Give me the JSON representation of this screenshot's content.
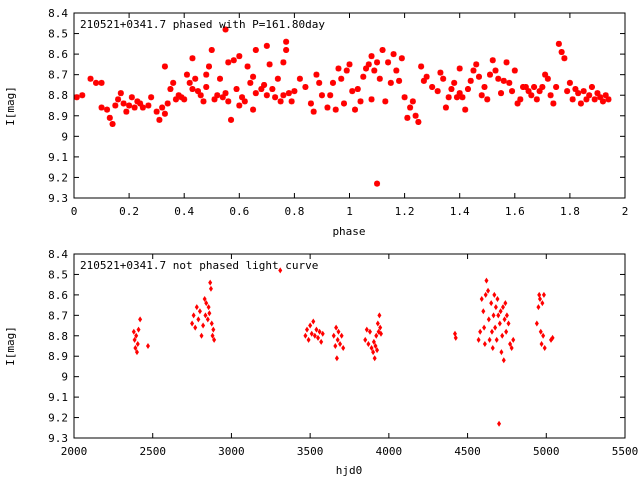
{
  "chart_data": [
    {
      "type": "scatter",
      "title": "210521+0341.7 phased with P=161.80day",
      "xlabel": "phase",
      "ylabel": "I[mag]",
      "xlim": [
        0,
        2
      ],
      "ylim": [
        9.3,
        8.4
      ],
      "y_inverted": true,
      "grid": false,
      "xticks": [
        "0",
        "0.2",
        "0.4",
        "0.6",
        "0.8",
        "1",
        "1.2",
        "1.4",
        "1.6",
        "1.8",
        "2"
      ],
      "yticks": [
        "8.4",
        "8.5",
        "8.6",
        "8.7",
        "8.8",
        "8.9",
        "9",
        "9.1",
        "9.2",
        "9.3"
      ],
      "marker": "star",
      "color": "#ff0000",
      "points": [
        [
          0.01,
          8.81
        ],
        [
          0.03,
          8.8
        ],
        [
          0.06,
          8.72
        ],
        [
          0.08,
          8.74
        ],
        [
          0.1,
          8.74
        ],
        [
          0.1,
          8.86
        ],
        [
          0.12,
          8.87
        ],
        [
          0.13,
          8.91
        ],
        [
          0.14,
          8.94
        ],
        [
          0.15,
          8.85
        ],
        [
          0.16,
          8.82
        ],
        [
          0.17,
          8.79
        ],
        [
          0.18,
          8.84
        ],
        [
          0.19,
          8.88
        ],
        [
          0.2,
          8.85
        ],
        [
          0.21,
          8.81
        ],
        [
          0.22,
          8.86
        ],
        [
          0.23,
          8.83
        ],
        [
          0.24,
          8.84
        ],
        [
          0.25,
          8.86
        ],
        [
          0.27,
          8.85
        ],
        [
          0.28,
          8.81
        ],
        [
          0.3,
          8.88
        ],
        [
          0.31,
          8.92
        ],
        [
          0.32,
          8.86
        ],
        [
          0.33,
          8.89
        ],
        [
          0.33,
          8.66
        ],
        [
          0.34,
          8.84
        ],
        [
          0.35,
          8.77
        ],
        [
          0.36,
          8.74
        ],
        [
          0.37,
          8.82
        ],
        [
          0.38,
          8.8
        ],
        [
          0.39,
          8.81
        ],
        [
          0.4,
          8.82
        ],
        [
          0.41,
          8.7
        ],
        [
          0.42,
          8.74
        ],
        [
          0.43,
          8.62
        ],
        [
          0.43,
          8.77
        ],
        [
          0.44,
          8.72
        ],
        [
          0.45,
          8.78
        ],
        [
          0.46,
          8.8
        ],
        [
          0.47,
          8.83
        ],
        [
          0.48,
          8.7
        ],
        [
          0.48,
          8.76
        ],
        [
          0.49,
          8.66
        ],
        [
          0.5,
          8.58
        ],
        [
          0.51,
          8.82
        ],
        [
          0.52,
          8.8
        ],
        [
          0.53,
          8.72
        ],
        [
          0.54,
          8.81
        ],
        [
          0.55,
          8.79
        ],
        [
          0.55,
          8.48
        ],
        [
          0.56,
          8.64
        ],
        [
          0.56,
          8.83
        ],
        [
          0.57,
          8.92
        ],
        [
          0.58,
          8.63
        ],
        [
          0.59,
          8.77
        ],
        [
          0.6,
          8.61
        ],
        [
          0.6,
          8.85
        ],
        [
          0.61,
          8.81
        ],
        [
          0.62,
          8.83
        ],
        [
          0.63,
          8.66
        ],
        [
          0.64,
          8.74
        ],
        [
          0.65,
          8.87
        ],
        [
          0.65,
          8.71
        ],
        [
          0.66,
          8.79
        ],
        [
          0.66,
          8.58
        ],
        [
          0.68,
          8.77
        ],
        [
          0.69,
          8.75
        ],
        [
          0.7,
          8.56
        ],
        [
          0.7,
          8.8
        ],
        [
          0.71,
          8.65
        ],
        [
          0.72,
          8.77
        ],
        [
          0.73,
          8.81
        ],
        [
          0.74,
          8.72
        ],
        [
          0.75,
          8.83
        ],
        [
          0.76,
          8.64
        ],
        [
          0.76,
          8.8
        ],
        [
          0.77,
          8.58
        ],
        [
          0.77,
          8.54
        ],
        [
          0.78,
          8.79
        ],
        [
          0.79,
          8.83
        ],
        [
          0.8,
          8.78
        ],
        [
          0.82,
          8.72
        ],
        [
          0.84,
          8.76
        ],
        [
          0.86,
          8.84
        ],
        [
          0.87,
          8.88
        ],
        [
          0.88,
          8.7
        ],
        [
          0.89,
          8.74
        ],
        [
          0.9,
          8.8
        ],
        [
          0.92,
          8.86
        ],
        [
          0.93,
          8.8
        ],
        [
          0.94,
          8.74
        ],
        [
          0.95,
          8.87
        ],
        [
          0.96,
          8.67
        ],
        [
          0.97,
          8.72
        ],
        [
          0.98,
          8.84
        ],
        [
          0.99,
          8.68
        ],
        [
          1.0,
          8.65
        ],
        [
          1.01,
          8.78
        ],
        [
          1.02,
          8.87
        ],
        [
          1.03,
          8.77
        ],
        [
          1.04,
          8.83
        ],
        [
          1.05,
          8.71
        ],
        [
          1.06,
          8.67
        ],
        [
          1.07,
          8.65
        ],
        [
          1.08,
          8.61
        ],
        [
          1.08,
          8.82
        ],
        [
          1.09,
          8.68
        ],
        [
          1.1,
          8.64
        ],
        [
          1.1,
          9.23
        ],
        [
          1.11,
          8.72
        ],
        [
          1.12,
          8.58
        ],
        [
          1.13,
          8.83
        ],
        [
          1.14,
          8.64
        ],
        [
          1.15,
          8.74
        ],
        [
          1.16,
          8.6
        ],
        [
          1.17,
          8.68
        ],
        [
          1.18,
          8.73
        ],
        [
          1.19,
          8.62
        ],
        [
          1.2,
          8.81
        ],
        [
          1.21,
          8.91
        ],
        [
          1.22,
          8.86
        ],
        [
          1.23,
          8.83
        ],
        [
          1.24,
          8.9
        ],
        [
          1.25,
          8.93
        ],
        [
          1.26,
          8.66
        ],
        [
          1.27,
          8.73
        ],
        [
          1.28,
          8.71
        ],
        [
          1.3,
          8.76
        ],
        [
          1.32,
          8.78
        ],
        [
          1.33,
          8.69
        ],
        [
          1.34,
          8.72
        ],
        [
          1.35,
          8.86
        ],
        [
          1.36,
          8.81
        ],
        [
          1.37,
          8.77
        ],
        [
          1.38,
          8.74
        ],
        [
          1.39,
          8.81
        ],
        [
          1.4,
          8.79
        ],
        [
          1.4,
          8.67
        ],
        [
          1.41,
          8.81
        ],
        [
          1.42,
          8.87
        ],
        [
          1.43,
          8.77
        ],
        [
          1.44,
          8.73
        ],
        [
          1.45,
          8.68
        ],
        [
          1.46,
          8.65
        ],
        [
          1.47,
          8.71
        ],
        [
          1.48,
          8.8
        ],
        [
          1.49,
          8.76
        ],
        [
          1.5,
          8.82
        ],
        [
          1.51,
          8.7
        ],
        [
          1.52,
          8.63
        ],
        [
          1.53,
          8.68
        ],
        [
          1.54,
          8.72
        ],
        [
          1.55,
          8.79
        ],
        [
          1.56,
          8.73
        ],
        [
          1.57,
          8.64
        ],
        [
          1.58,
          8.74
        ],
        [
          1.59,
          8.78
        ],
        [
          1.6,
          8.68
        ],
        [
          1.61,
          8.84
        ],
        [
          1.62,
          8.82
        ],
        [
          1.63,
          8.76
        ],
        [
          1.64,
          8.76
        ],
        [
          1.65,
          8.78
        ],
        [
          1.66,
          8.8
        ],
        [
          1.67,
          8.76
        ],
        [
          1.68,
          8.82
        ],
        [
          1.69,
          8.78
        ],
        [
          1.7,
          8.76
        ],
        [
          1.71,
          8.7
        ],
        [
          1.72,
          8.72
        ],
        [
          1.73,
          8.8
        ],
        [
          1.74,
          8.84
        ],
        [
          1.75,
          8.76
        ],
        [
          1.76,
          8.55
        ],
        [
          1.77,
          8.59
        ],
        [
          1.78,
          8.62
        ],
        [
          1.79,
          8.78
        ],
        [
          1.8,
          8.74
        ],
        [
          1.81,
          8.82
        ],
        [
          1.82,
          8.77
        ],
        [
          1.83,
          8.79
        ],
        [
          1.84,
          8.84
        ],
        [
          1.85,
          8.78
        ],
        [
          1.86,
          8.82
        ],
        [
          1.87,
          8.8
        ],
        [
          1.88,
          8.76
        ],
        [
          1.89,
          8.82
        ],
        [
          1.9,
          8.79
        ],
        [
          1.91,
          8.81
        ],
        [
          1.92,
          8.83
        ],
        [
          1.93,
          8.8
        ],
        [
          1.94,
          8.82
        ]
      ]
    },
    {
      "type": "scatter",
      "title": "210521+0341.7 not phased light curve",
      "xlabel": "hjd0",
      "ylabel": "I[mag]",
      "xlim": [
        2000,
        5500
      ],
      "ylim": [
        9.3,
        8.4
      ],
      "y_inverted": true,
      "grid": false,
      "xticks": [
        "2000",
        "2500",
        "3000",
        "3500",
        "4000",
        "4500",
        "5000",
        "5500"
      ],
      "yticks": [
        "8.4",
        "8.5",
        "8.6",
        "8.7",
        "8.8",
        "8.9",
        "9",
        "9.1",
        "9.2",
        "9.3"
      ],
      "marker": "diamond",
      "color": "#ff0000",
      "points": [
        [
          2380,
          8.78
        ],
        [
          2385,
          8.82
        ],
        [
          2390,
          8.86
        ],
        [
          2395,
          8.8
        ],
        [
          2400,
          8.88
        ],
        [
          2405,
          8.84
        ],
        [
          2410,
          8.77
        ],
        [
          2420,
          8.72
        ],
        [
          2470,
          8.85
        ],
        [
          2750,
          8.74
        ],
        [
          2760,
          8.7
        ],
        [
          2770,
          8.76
        ],
        [
          2780,
          8.66
        ],
        [
          2790,
          8.72
        ],
        [
          2800,
          8.68
        ],
        [
          2810,
          8.8
        ],
        [
          2820,
          8.75
        ],
        [
          2830,
          8.62
        ],
        [
          2835,
          8.7
        ],
        [
          2840,
          8.64
        ],
        [
          2850,
          8.72
        ],
        [
          2855,
          8.66
        ],
        [
          2860,
          8.69
        ],
        [
          2865,
          8.54
        ],
        [
          2870,
          8.57
        ],
        [
          2875,
          8.74
        ],
        [
          2880,
          8.8
        ],
        [
          2885,
          8.77
        ],
        [
          2890,
          8.82
        ],
        [
          3310,
          8.48
        ],
        [
          3470,
          8.8
        ],
        [
          3480,
          8.77
        ],
        [
          3490,
          8.82
        ],
        [
          3500,
          8.75
        ],
        [
          3510,
          8.79
        ],
        [
          3520,
          8.73
        ],
        [
          3530,
          8.8
        ],
        [
          3540,
          8.77
        ],
        [
          3550,
          8.81
        ],
        [
          3560,
          8.78
        ],
        [
          3570,
          8.83
        ],
        [
          3580,
          8.79
        ],
        [
          3650,
          8.8
        ],
        [
          3660,
          8.85
        ],
        [
          3665,
          8.76
        ],
        [
          3670,
          8.91
        ],
        [
          3675,
          8.82
        ],
        [
          3680,
          8.78
        ],
        [
          3690,
          8.84
        ],
        [
          3700,
          8.8
        ],
        [
          3710,
          8.86
        ],
        [
          3850,
          8.82
        ],
        [
          3860,
          8.77
        ],
        [
          3870,
          8.84
        ],
        [
          3880,
          8.78
        ],
        [
          3890,
          8.86
        ],
        [
          3900,
          8.88
        ],
        [
          3905,
          8.83
        ],
        [
          3910,
          8.91
        ],
        [
          3915,
          8.85
        ],
        [
          3920,
          8.8
        ],
        [
          3925,
          8.87
        ],
        [
          3930,
          8.74
        ],
        [
          3935,
          8.78
        ],
        [
          3940,
          8.7
        ],
        [
          3945,
          8.76
        ],
        [
          3950,
          8.79
        ],
        [
          4420,
          8.79
        ],
        [
          4425,
          8.81
        ],
        [
          4570,
          8.82
        ],
        [
          4580,
          8.78
        ],
        [
          4590,
          8.62
        ],
        [
          4600,
          8.68
        ],
        [
          4605,
          8.76
        ],
        [
          4610,
          8.84
        ],
        [
          4615,
          8.6
        ],
        [
          4620,
          8.53
        ],
        [
          4630,
          8.58
        ],
        [
          4635,
          8.72
        ],
        [
          4640,
          8.82
        ],
        [
          4650,
          8.64
        ],
        [
          4655,
          8.78
        ],
        [
          4660,
          8.86
        ],
        [
          4665,
          8.7
        ],
        [
          4670,
          8.6
        ],
        [
          4675,
          8.76
        ],
        [
          4680,
          8.66
        ],
        [
          4685,
          8.82
        ],
        [
          4690,
          8.62
        ],
        [
          4695,
          8.7
        ],
        [
          4700,
          9.23
        ],
        [
          4705,
          8.74
        ],
        [
          4710,
          8.68
        ],
        [
          4715,
          8.88
        ],
        [
          4720,
          8.8
        ],
        [
          4725,
          8.66
        ],
        [
          4730,
          8.92
        ],
        [
          4735,
          8.72
        ],
        [
          4740,
          8.64
        ],
        [
          4745,
          8.78
        ],
        [
          4750,
          8.7
        ],
        [
          4760,
          8.74
        ],
        [
          4770,
          8.84
        ],
        [
          4780,
          8.86
        ],
        [
          4790,
          8.82
        ],
        [
          4940,
          8.74
        ],
        [
          4950,
          8.66
        ],
        [
          4955,
          8.6
        ],
        [
          4960,
          8.62
        ],
        [
          4965,
          8.78
        ],
        [
          4970,
          8.84
        ],
        [
          4975,
          8.64
        ],
        [
          4980,
          8.8
        ],
        [
          4985,
          8.6
        ],
        [
          4990,
          8.86
        ],
        [
          5030,
          8.82
        ],
        [
          5040,
          8.81
        ]
      ]
    }
  ]
}
